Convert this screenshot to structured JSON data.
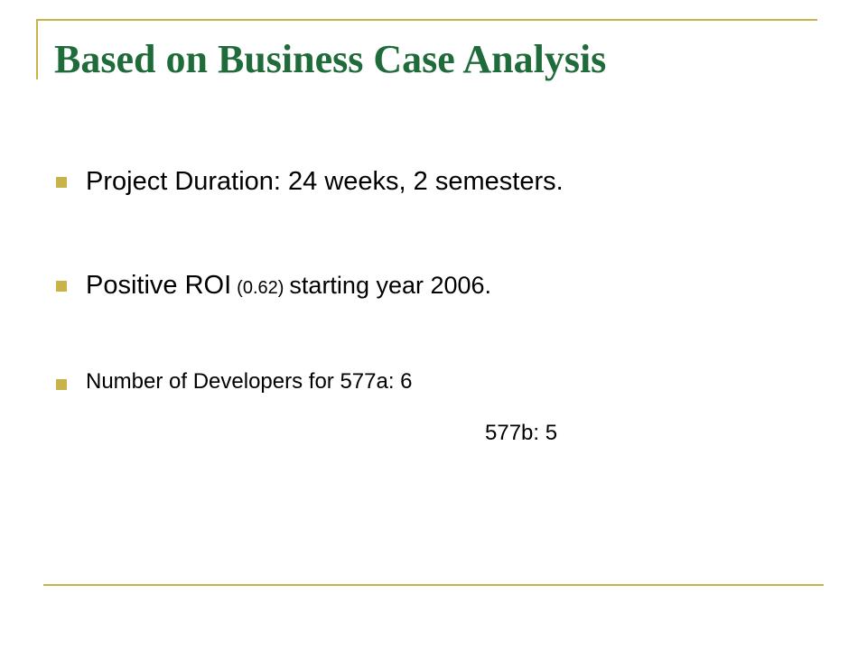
{
  "title": "Based on Business Case Analysis",
  "bullets": [
    {
      "parts": [
        "Project Duration: 24 weeks, 2 semesters."
      ]
    },
    {
      "parts": [
        "Positive ROI",
        "(0.62)",
        "starting year 2006."
      ]
    },
    {
      "lines": [
        "Number of Developers for 577a: 6",
        "577b: 5"
      ]
    }
  ]
}
